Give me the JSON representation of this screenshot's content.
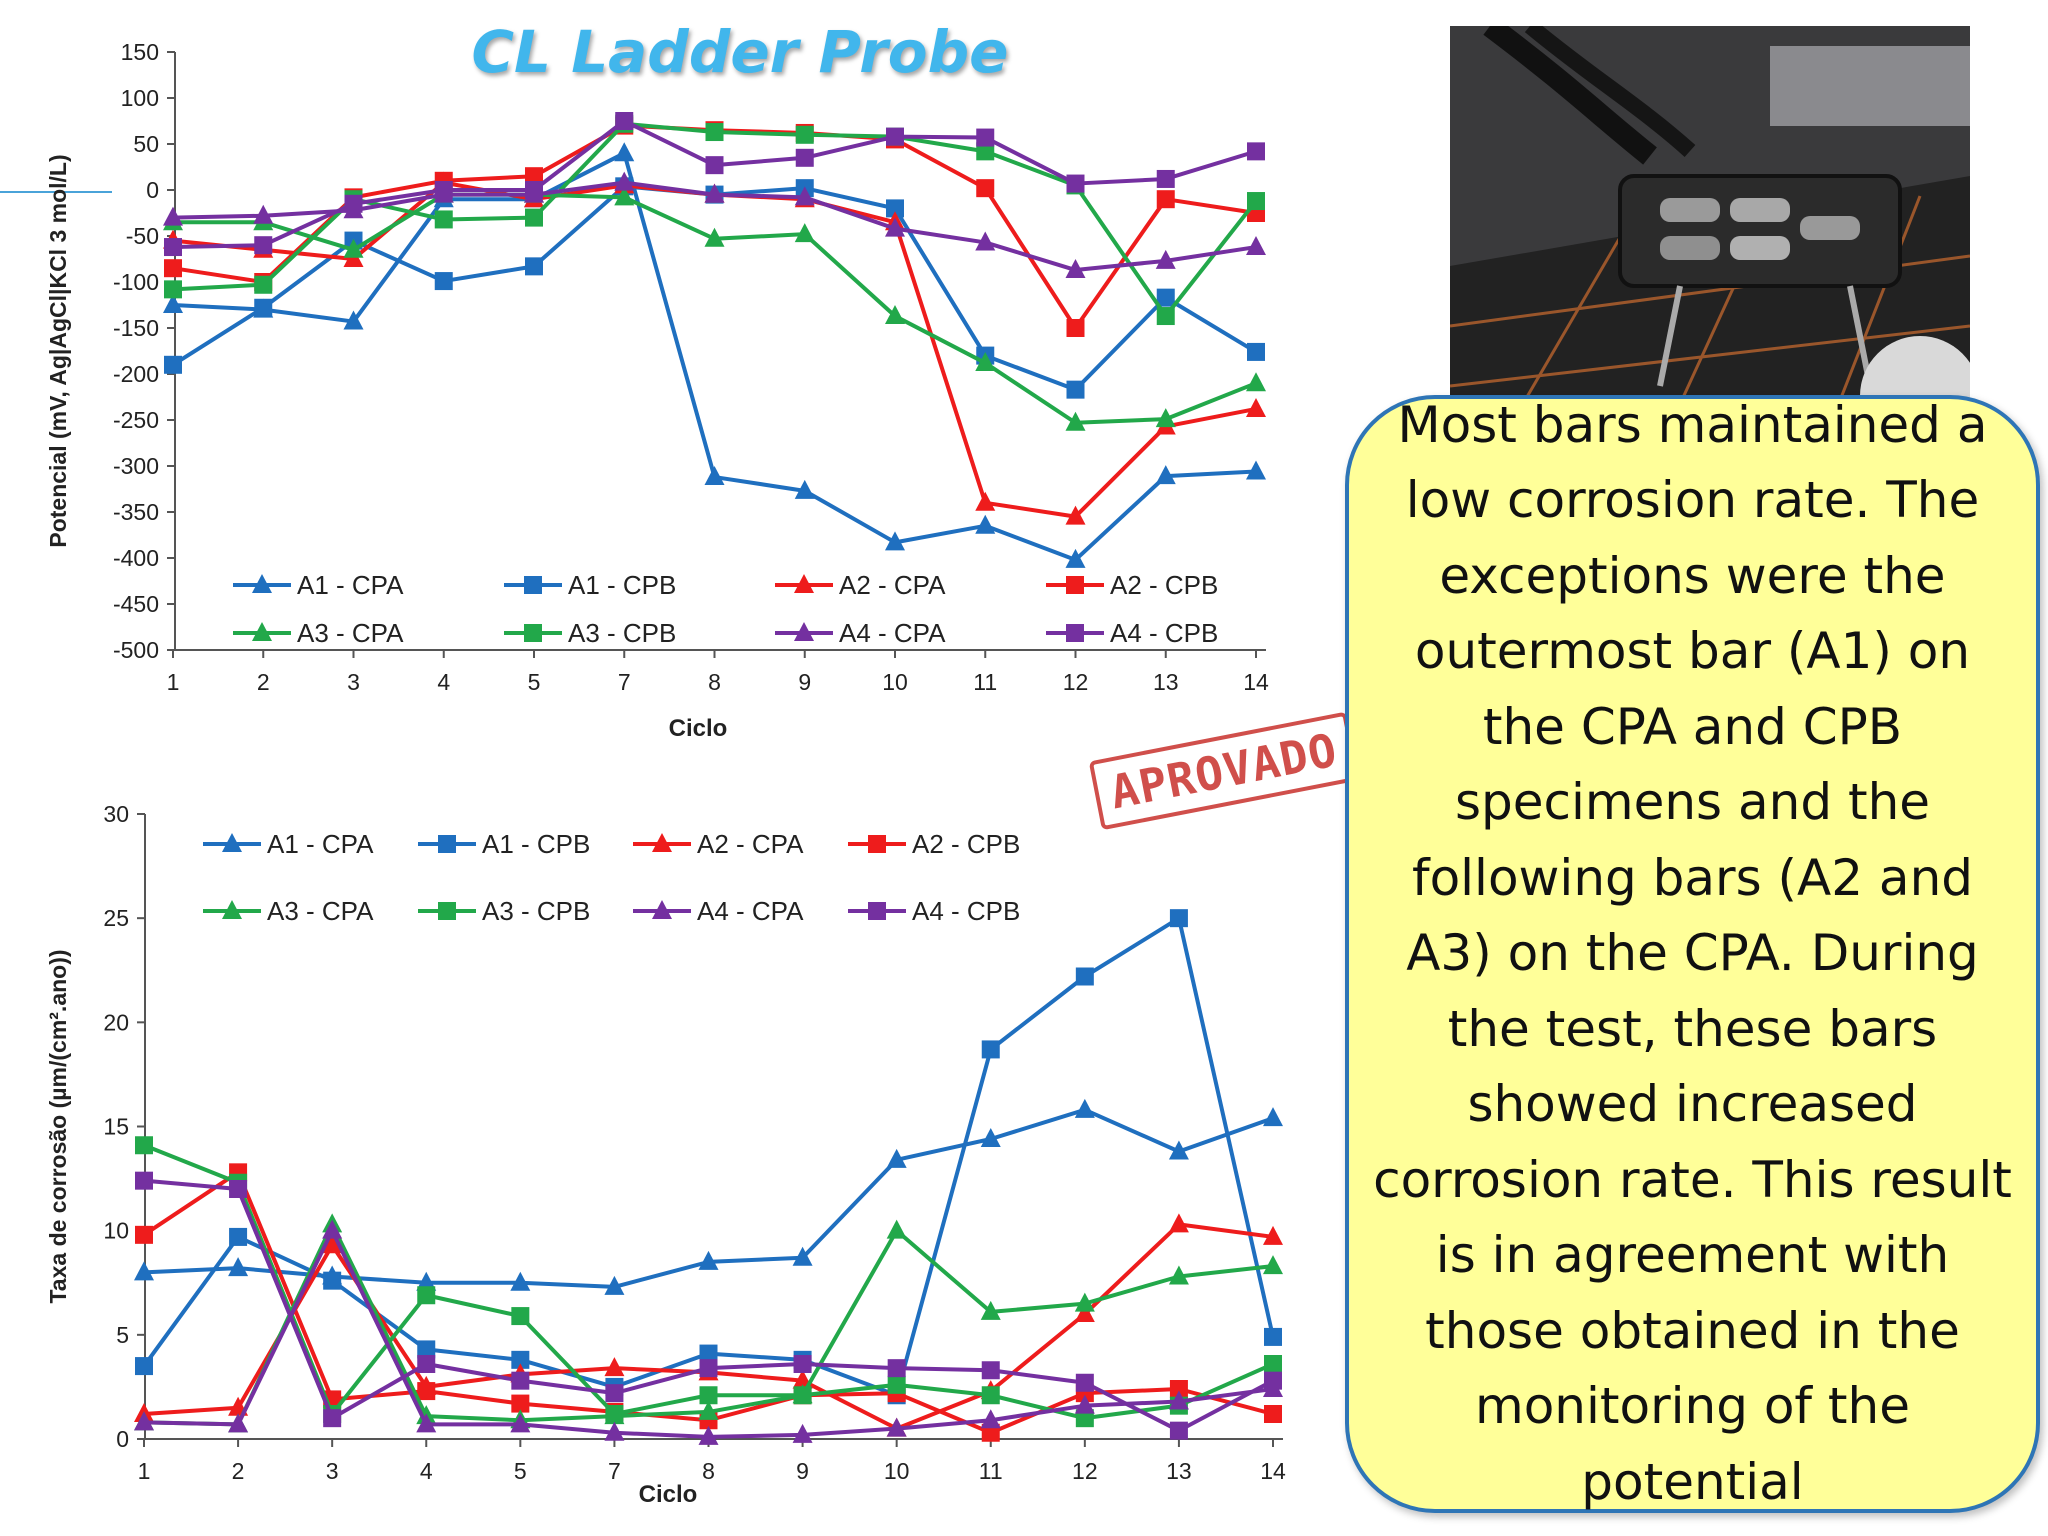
{
  "slide": {
    "title": "CL Ladder Probe",
    "stamp": "APROVADO",
    "note": "Most bars maintained a low corrosion rate. The exceptions were the outermost bar (A1) on the CPA and CPB specimens and the following bars (A2 and A3) on the CPA. During the test, these bars showed increased corrosion rate. This result is in agreement with those obtained in the monitoring of the potential",
    "photo_description_icon": "ladder-probe-photo-icon"
  },
  "chart_data": [
    {
      "type": "line",
      "xlabel": "Ciclo",
      "ylabel": "Potencial (mV, Ag|AgCl|KCl 3 mol/L)",
      "categories": [
        "1",
        "2",
        "3",
        "4",
        "5",
        "7",
        "8",
        "9",
        "10",
        "11",
        "12",
        "13",
        "14"
      ],
      "ylim": [
        -500,
        150
      ],
      "yticks": [
        150,
        100,
        50,
        0,
        -50,
        -100,
        -150,
        -200,
        -250,
        -300,
        -350,
        -400,
        -450,
        -500
      ],
      "legend_position": "bottom-inside",
      "series": [
        {
          "name": "A1 - CPA",
          "color": "#1f6fbf",
          "marker": "triangle",
          "values": [
            -125,
            -130,
            -143,
            -10,
            -10,
            40,
            -312,
            -327,
            -383,
            -365,
            -402,
            -311,
            -306
          ]
        },
        {
          "name": "A1 - CPB",
          "color": "#1f6fbf",
          "marker": "square",
          "values": [
            -190,
            -128,
            -55,
            -99,
            -83,
            4,
            -5,
            2,
            -20,
            -180,
            -217,
            -117,
            -176
          ]
        },
        {
          "name": "A2 - CPA",
          "color": "#ee1c1c",
          "marker": "triangle",
          "values": [
            -55,
            -65,
            -75,
            8,
            -10,
            5,
            -5,
            -10,
            -35,
            -340,
            -355,
            -257,
            -238
          ]
        },
        {
          "name": "A2 - CPB",
          "color": "#ee1c1c",
          "marker": "square",
          "values": [
            -85,
            -100,
            -8,
            10,
            15,
            70,
            65,
            62,
            55,
            2,
            -150,
            -10,
            -25
          ]
        },
        {
          "name": "A3 - CPA",
          "color": "#22a84a",
          "marker": "triangle",
          "values": [
            -35,
            -35,
            -65,
            -5,
            -5,
            -8,
            -53,
            -48,
            -137,
            -188,
            -253,
            -249,
            -210
          ]
        },
        {
          "name": "A3 - CPB",
          "color": "#22a84a",
          "marker": "square",
          "values": [
            -108,
            -103,
            -10,
            -32,
            -30,
            72,
            63,
            60,
            58,
            42,
            5,
            -137,
            -12
          ]
        },
        {
          "name": "A4 - CPA",
          "color": "#7430a0",
          "marker": "triangle",
          "values": [
            -30,
            -28,
            -22,
            -5,
            -5,
            8,
            -5,
            -8,
            -42,
            -57,
            -87,
            -77,
            -62
          ]
        },
        {
          "name": "A4 - CPB",
          "color": "#7430a0",
          "marker": "square",
          "values": [
            -62,
            -60,
            -15,
            0,
            0,
            75,
            27,
            35,
            58,
            57,
            7,
            12,
            42
          ]
        }
      ]
    },
    {
      "type": "line",
      "xlabel": "Ciclo",
      "ylabel": "Taxa de corrosão (µm/(cm².ano))",
      "categories": [
        "1",
        "2",
        "3",
        "4",
        "5",
        "7",
        "8",
        "9",
        "10",
        "11",
        "12",
        "13",
        "14"
      ],
      "ylim": [
        0,
        30
      ],
      "yticks": [
        30,
        25,
        20,
        15,
        10,
        5,
        0
      ],
      "legend_position": "top-inside",
      "series": [
        {
          "name": "A1 - CPA",
          "color": "#1f6fbf",
          "marker": "triangle",
          "values": [
            8,
            8.2,
            7.8,
            7.5,
            7.5,
            7.3,
            8.5,
            8.7,
            13.4,
            14.4,
            15.8,
            13.8,
            15.4
          ]
        },
        {
          "name": "A1 - CPB",
          "color": "#1f6fbf",
          "marker": "square",
          "values": [
            3.5,
            9.7,
            7.6,
            4.3,
            3.8,
            2.5,
            4.1,
            3.8,
            2.1,
            18.7,
            22.2,
            25,
            4.9
          ]
        },
        {
          "name": "A2 - CPA",
          "color": "#ee1c1c",
          "marker": "triangle",
          "values": [
            1.2,
            1.5,
            9.3,
            2.5,
            3.1,
            3.4,
            3.2,
            2.8,
            0.5,
            2.3,
            6,
            10.3,
            9.7
          ]
        },
        {
          "name": "A2 - CPB",
          "color": "#ee1c1c",
          "marker": "square",
          "values": [
            9.8,
            12.8,
            1.9,
            2.3,
            1.7,
            1.3,
            0.9,
            2.1,
            2.2,
            0.3,
            2.2,
            2.4,
            1.2
          ]
        },
        {
          "name": "A3 - CPA",
          "color": "#22a84a",
          "marker": "triangle",
          "values": [
            0.8,
            0.7,
            10.3,
            1.1,
            0.9,
            1.1,
            1.3,
            2.1,
            10,
            6.1,
            6.5,
            7.8,
            8.3
          ]
        },
        {
          "name": "A3 - CPB",
          "color": "#22a84a",
          "marker": "square",
          "values": [
            14.1,
            12.3,
            1.2,
            6.9,
            5.9,
            1.2,
            2.1,
            2.1,
            2.6,
            2.1,
            1,
            1.6,
            3.6
          ]
        },
        {
          "name": "A4 - CPA",
          "color": "#7430a0",
          "marker": "triangle",
          "values": [
            0.8,
            0.7,
            10,
            0.7,
            0.7,
            0.3,
            0.1,
            0.2,
            0.5,
            0.9,
            1.6,
            1.8,
            2.4
          ]
        },
        {
          "name": "A4 - CPB",
          "color": "#7430a0",
          "marker": "square",
          "values": [
            12.4,
            12,
            1,
            3.6,
            2.8,
            2.2,
            3.4,
            3.6,
            3.4,
            3.3,
            2.7,
            0.4,
            2.8
          ]
        }
      ]
    }
  ]
}
